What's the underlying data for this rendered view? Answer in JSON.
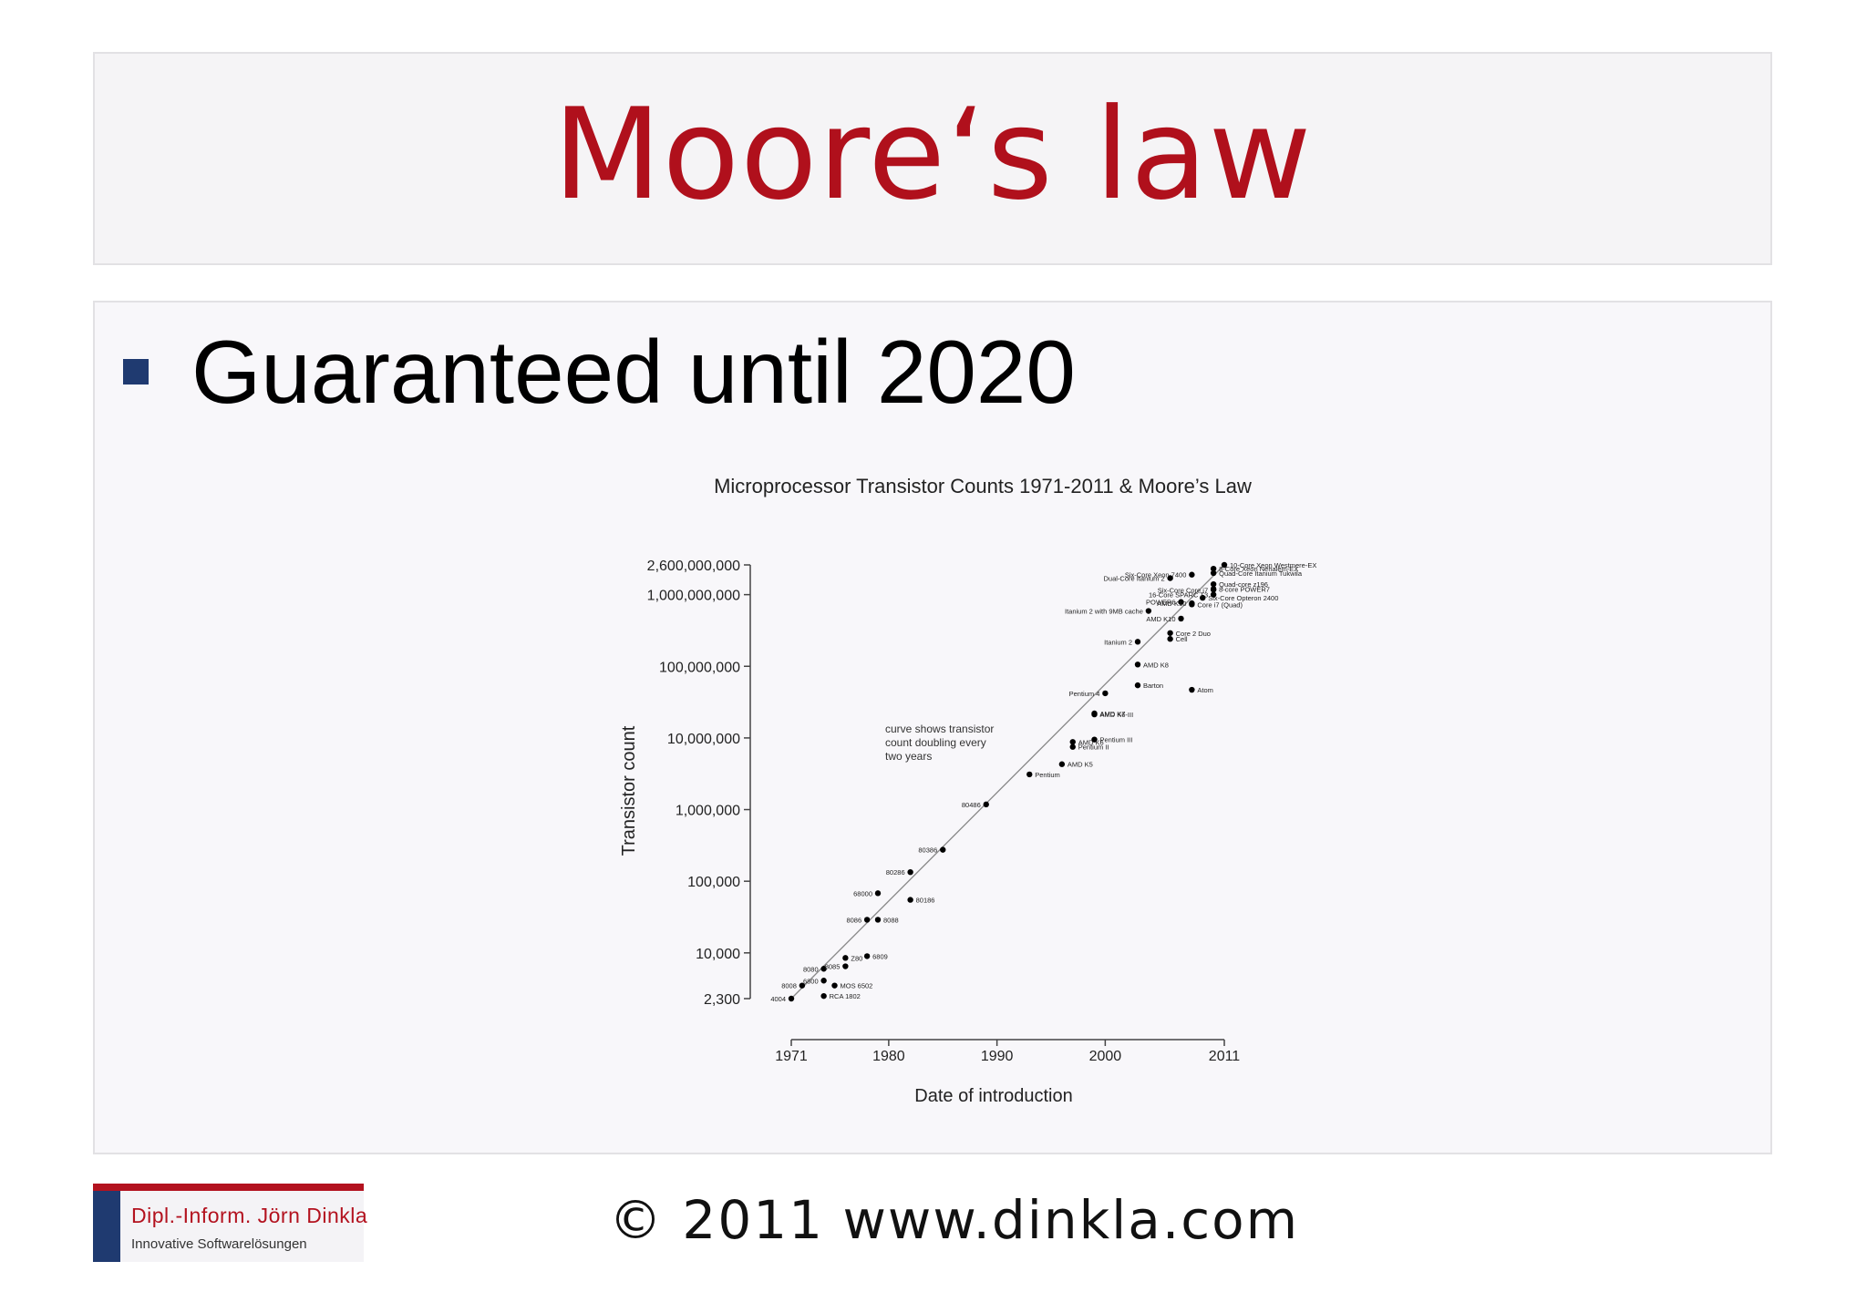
{
  "slide": {
    "title": "Moore‘s law",
    "bullet": "Guaranteed until 2020",
    "logo_name": "Dipl.-Inform. Jörn Dinkla",
    "logo_tagline": "Innovative Softwarelösungen",
    "copyright": "© 2011 www.dinkla.com"
  },
  "colors": {
    "title": "#b0101c",
    "bullet_square": "#1f3a70",
    "logo_red": "#b3121f",
    "logo_blue": "#1f3a70"
  },
  "chart_data": {
    "type": "scatter",
    "title": "Microprocessor Transistor Counts 1971-2011 & Moore’s Law",
    "xlabel": "Date of introduction",
    "ylabel": "Transistor count",
    "scale": {
      "x": "linear",
      "y": "log"
    },
    "xlim": [
      1971,
      2011
    ],
    "ylim": [
      2300,
      2600000000
    ],
    "x_ticks": [
      1971,
      1980,
      1990,
      2000,
      2011
    ],
    "y_ticks": [
      {
        "value": 2300,
        "label": "2,300"
      },
      {
        "value": 10000,
        "label": "10,000"
      },
      {
        "value": 100000,
        "label": "100,000"
      },
      {
        "value": 1000000,
        "label": "1,000,000"
      },
      {
        "value": 10000000,
        "label": "10,000,000"
      },
      {
        "value": 100000000,
        "label": "100,000,000"
      },
      {
        "value": 1000000000,
        "label": "1,000,000,000"
      },
      {
        "value": 2600000000,
        "label": "2,600,000,000"
      }
    ],
    "trend_line": {
      "x": [
        1971,
        2011
      ],
      "y": [
        2300,
        2600000000
      ]
    },
    "annotation": "curve shows transistor count doubling every two years",
    "points": [
      {
        "name": "4004",
        "x": 1971,
        "y": 2300,
        "label_side": "left"
      },
      {
        "name": "8008",
        "x": 1972,
        "y": 3500,
        "label_side": "left"
      },
      {
        "name": "RCA 1802",
        "x": 1974,
        "y": 2500,
        "label_side": "right"
      },
      {
        "name": "MOS 6502",
        "x": 1975,
        "y": 3500,
        "label_side": "right"
      },
      {
        "name": "8080",
        "x": 1974,
        "y": 6000,
        "label_side": "left"
      },
      {
        "name": "6800",
        "x": 1974,
        "y": 4100,
        "label_side": "left"
      },
      {
        "name": "8085",
        "x": 1976,
        "y": 6500,
        "label_side": "left"
      },
      {
        "name": "Z80",
        "x": 1976,
        "y": 8500,
        "label_side": "right"
      },
      {
        "name": "6809",
        "x": 1978,
        "y": 9000,
        "label_side": "right"
      },
      {
        "name": "8086",
        "x": 1978,
        "y": 29000,
        "label_side": "left"
      },
      {
        "name": "8088",
        "x": 1979,
        "y": 29000,
        "label_side": "right"
      },
      {
        "name": "68000",
        "x": 1979,
        "y": 68000,
        "label_side": "left"
      },
      {
        "name": "80186",
        "x": 1982,
        "y": 55000,
        "label_side": "right"
      },
      {
        "name": "80286",
        "x": 1982,
        "y": 134000,
        "label_side": "left"
      },
      {
        "name": "80386",
        "x": 1985,
        "y": 275000,
        "label_side": "left"
      },
      {
        "name": "80486",
        "x": 1989,
        "y": 1180000,
        "label_side": "left"
      },
      {
        "name": "Pentium",
        "x": 1993,
        "y": 3100000,
        "label_side": "right"
      },
      {
        "name": "AMD K5",
        "x": 1996,
        "y": 4300000,
        "label_side": "right"
      },
      {
        "name": "Pentium II",
        "x": 1997,
        "y": 7500000,
        "label_side": "right"
      },
      {
        "name": "AMD K6",
        "x": 1997,
        "y": 8800000,
        "label_side": "right"
      },
      {
        "name": "Pentium III",
        "x": 1999,
        "y": 9500000,
        "label_side": "right"
      },
      {
        "name": "AMD K6-III",
        "x": 1999,
        "y": 21300000,
        "label_side": "right"
      },
      {
        "name": "AMD K7",
        "x": 1999,
        "y": 22000000,
        "label_side": "right"
      },
      {
        "name": "Pentium 4",
        "x": 2000,
        "y": 42000000,
        "label_side": "left"
      },
      {
        "name": "Barton",
        "x": 2003,
        "y": 54300000,
        "label_side": "right"
      },
      {
        "name": "Atom",
        "x": 2008,
        "y": 47000000,
        "label_side": "right"
      },
      {
        "name": "AMD K8",
        "x": 2003,
        "y": 105900000,
        "label_side": "right"
      },
      {
        "name": "Itanium 2",
        "x": 2003,
        "y": 220000000,
        "label_side": "left"
      },
      {
        "name": "Cell",
        "x": 2006,
        "y": 241000000,
        "label_side": "right"
      },
      {
        "name": "Core 2 Duo",
        "x": 2006,
        "y": 291000000,
        "label_side": "right"
      },
      {
        "name": "AMD K10",
        "x": 2007,
        "y": 463000000,
        "label_side": "left"
      },
      {
        "name": "Itanium 2 with 9MB cache",
        "x": 2004,
        "y": 592000000,
        "label_side": "left"
      },
      {
        "name": "POWER6",
        "x": 2007,
        "y": 789000000,
        "label_side": "left"
      },
      {
        "name": "AMD K10",
        "x": 2008,
        "y": 758000000,
        "label_side": "left"
      },
      {
        "name": "Core i7 (Quad)",
        "x": 2008,
        "y": 731000000,
        "label_side": "right"
      },
      {
        "name": "Six-Core Opteron 2400",
        "x": 2009,
        "y": 904000000,
        "label_side": "right"
      },
      {
        "name": "Dual-Core Itanium 2",
        "x": 2006,
        "y": 1700000000,
        "label_side": "left"
      },
      {
        "name": "Six-Core Xeon 7400",
        "x": 2008,
        "y": 1900000000,
        "label_side": "left"
      },
      {
        "name": "Six-Core Core i7",
        "x": 2010,
        "y": 1170000000,
        "label_side": "left"
      },
      {
        "name": "16-Core SPARC T3",
        "x": 2010,
        "y": 1000000000,
        "label_side": "left"
      },
      {
        "name": "8-core POWER7",
        "x": 2010,
        "y": 1200000000,
        "label_side": "right"
      },
      {
        "name": "Quad-core z196",
        "x": 2010,
        "y": 1400000000,
        "label_side": "right"
      },
      {
        "name": "Quad-Core Itanium Tukwila",
        "x": 2010,
        "y": 2000000000,
        "label_side": "right"
      },
      {
        "name": "8-Core Xeon Nehalem-EX",
        "x": 2010,
        "y": 2300000000,
        "label_side": "right"
      },
      {
        "name": "10-Core Xeon Westmere-EX",
        "x": 2011,
        "y": 2600000000,
        "label_side": "right"
      }
    ]
  }
}
